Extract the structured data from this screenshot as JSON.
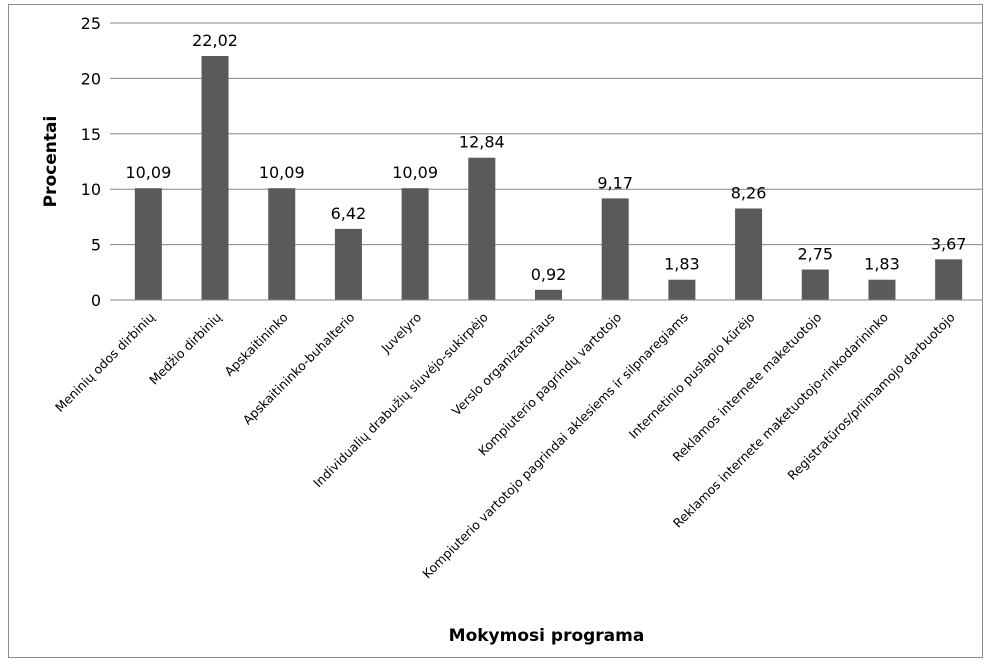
{
  "chart_data": {
    "type": "bar",
    "title": "",
    "xlabel": "Mokymosi programa",
    "ylabel": "Procentai",
    "ylim": [
      0,
      25
    ],
    "yticks": [
      0,
      5,
      10,
      15,
      20,
      25
    ],
    "grid": true,
    "legend": "none",
    "bar_color": "#5a5a5a",
    "categories": [
      "Meninių odos dirbinių",
      "Medžio dirbinių",
      "Apskaitininko",
      "Apskaitininko-buhalterio",
      "Juvelyro",
      "Individualių drabužių siuvėjo-sukirpėjo",
      "Verslo organizatoriaus",
      "Kompiuterio pagrindų vartotojo",
      "Kompiuterio vartotojo pagrindai aklesiems ir silpnaregiams",
      "Internetinio puslapio kūrėjo",
      "Reklamos internete maketuotojo",
      "Reklamos internete maketuotojo-rinkodarininko",
      "Registratūros/priimamojo darbuotojo"
    ],
    "values": [
      10.09,
      22.02,
      10.09,
      6.42,
      10.09,
      12.84,
      0.92,
      9.17,
      1.83,
      8.26,
      2.75,
      1.83,
      3.67
    ],
    "value_labels": [
      "10,09",
      "22,02",
      "10,09",
      "6,42",
      "10,09",
      "12,84",
      "0,92",
      "9,17",
      "1,83",
      "8,26",
      "2,75",
      "1,83",
      "3,67"
    ]
  }
}
